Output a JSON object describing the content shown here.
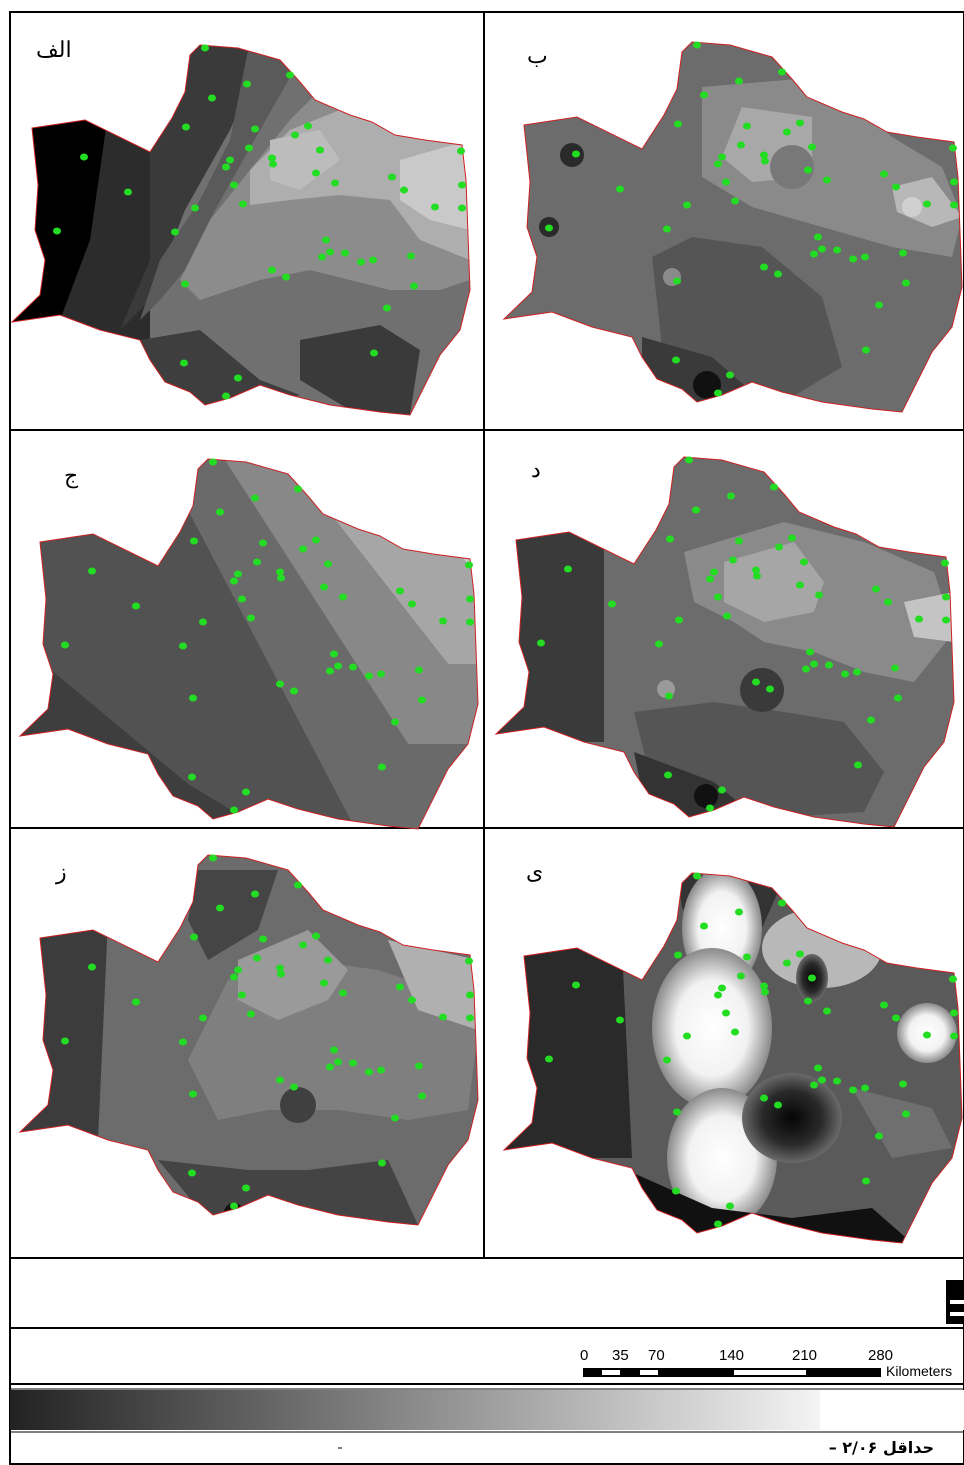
{
  "panels": [
    {
      "id": "alef",
      "label": "الف"
    },
    {
      "id": "be",
      "label": "ب"
    },
    {
      "id": "jim",
      "label": "ج"
    },
    {
      "id": "dal",
      "label": "د"
    },
    {
      "id": "ze",
      "label": "ز"
    },
    {
      "id": "ye",
      "label": "ی"
    }
  ],
  "scale_bar": {
    "ticks": [
      "0",
      "35",
      "70",
      "140",
      "210",
      "280"
    ],
    "unit": "Kilometers"
  },
  "legend": {
    "min_label": "حداقل ۲/۰۶ –",
    "gradient_from": "#222222",
    "gradient_to": "#ffffff"
  },
  "colors": {
    "station": "#22dd22",
    "boundary": "#cc2222"
  }
}
